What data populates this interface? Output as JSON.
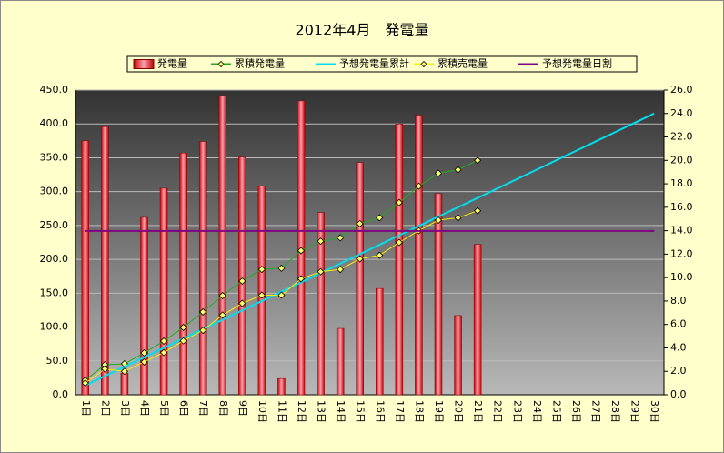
{
  "chart_data": {
    "type": "combo",
    "title": "2012年4月　発電量",
    "categories": [
      "1日",
      "2日",
      "3日",
      "4日",
      "5日",
      "6日",
      "7日",
      "8日",
      "9日",
      "10日",
      "11日",
      "12日",
      "13日",
      "14日",
      "15日",
      "16日",
      "17日",
      "18日",
      "19日",
      "20日",
      "21日",
      "22日",
      "23日",
      "24日",
      "25日",
      "26日",
      "27日",
      "28日",
      "29日",
      "30日"
    ],
    "series": [
      {
        "name": "発電量",
        "type": "bar",
        "color": "#ff0000",
        "values": [
          375,
          396,
          32,
          262,
          305,
          357,
          374,
          442,
          351,
          308,
          24,
          434,
          269,
          98,
          343,
          157,
          400,
          413,
          297,
          117,
          222,
          null,
          null,
          null,
          null,
          null,
          null,
          null,
          null,
          null
        ]
      },
      {
        "name": "累積発電量",
        "type": "line",
        "axis": "y2",
        "color": "#22aa22",
        "marker": true,
        "values": [
          1.24,
          2.56,
          2.64,
          3.57,
          4.58,
          5.75,
          7.07,
          8.46,
          9.7,
          10.7,
          10.8,
          12.3,
          13.1,
          13.4,
          14.6,
          15.1,
          16.4,
          17.8,
          18.9,
          19.2,
          20.0,
          null,
          null,
          null,
          null,
          null,
          null,
          null,
          null,
          null
        ]
      },
      {
        "name": "予想発電量累計",
        "type": "line",
        "axis": "y2",
        "color": "#00ddee",
        "marker": false,
        "values": [
          0.8,
          1.6,
          2.4,
          3.2,
          4.0,
          4.8,
          5.6,
          6.4,
          7.2,
          8.0,
          8.8,
          9.6,
          10.4,
          11.2,
          12.0,
          12.8,
          13.6,
          14.4,
          15.2,
          16.0,
          16.8,
          17.6,
          18.4,
          19.2,
          20.0,
          20.8,
          21.6,
          22.4,
          23.2,
          24.0
        ]
      },
      {
        "name": "累積売電量",
        "type": "line",
        "axis": "y2",
        "color": "#ffee00",
        "marker": true,
        "values": [
          1.0,
          2.2,
          2.0,
          2.8,
          3.6,
          4.6,
          5.5,
          6.8,
          7.8,
          8.5,
          8.5,
          9.9,
          10.5,
          10.7,
          11.6,
          11.9,
          13.0,
          14.0,
          14.9,
          15.1,
          15.7,
          null,
          null,
          null,
          null,
          null,
          null,
          null,
          null,
          null
        ]
      },
      {
        "name": "予想発電量日割",
        "type": "line",
        "color": "#800080",
        "marker": false,
        "values": [
          242,
          242,
          242,
          242,
          242,
          242,
          242,
          242,
          242,
          242,
          242,
          242,
          242,
          242,
          242,
          242,
          242,
          242,
          242,
          242,
          242,
          242,
          242,
          242,
          242,
          242,
          242,
          242,
          242,
          242
        ]
      }
    ],
    "ylim": [
      0,
      450
    ],
    "yticks": [
      {
        "value": 0,
        "label": "0.0"
      },
      {
        "value": 50,
        "label": "50.0"
      },
      {
        "value": 100,
        "label": "100.0"
      },
      {
        "value": 150,
        "label": "150.0"
      },
      {
        "value": 200,
        "label": "200.0"
      },
      {
        "value": 250,
        "label": "250.0"
      },
      {
        "value": 300,
        "label": "300.0"
      },
      {
        "value": 350,
        "label": "350.0"
      },
      {
        "value": 400,
        "label": "400.0"
      },
      {
        "value": 450,
        "label": "450.0"
      }
    ],
    "y2lim": [
      0,
      26
    ],
    "y2ticks": [
      {
        "value": 0,
        "label": "0.0"
      },
      {
        "value": 2,
        "label": "2.0"
      },
      {
        "value": 4,
        "label": "4.0"
      },
      {
        "value": 6,
        "label": "6.0"
      },
      {
        "value": 8,
        "label": "8.0"
      },
      {
        "value": 10,
        "label": "10.0"
      },
      {
        "value": 12,
        "label": "12.0"
      },
      {
        "value": 14,
        "label": "14.0"
      },
      {
        "value": 16,
        "label": "16.0"
      },
      {
        "value": 18,
        "label": "18.0"
      },
      {
        "value": 20,
        "label": "20.0"
      },
      {
        "value": 22,
        "label": "22.0"
      },
      {
        "value": 24,
        "label": "24.0"
      },
      {
        "value": 26,
        "label": "26.0"
      }
    ],
    "grid": true
  }
}
